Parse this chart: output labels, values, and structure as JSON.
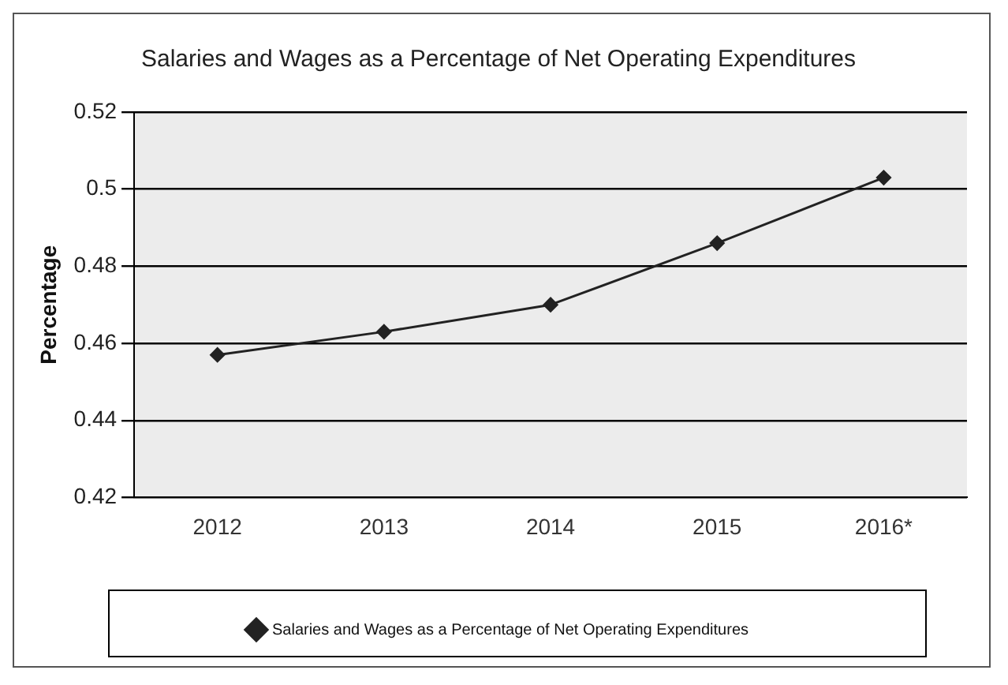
{
  "chart_data": {
    "type": "line",
    "title": "Salaries and Wages as a Percentage of Net Operating Expenditures",
    "ylabel": "Percentage",
    "categories": [
      "2012",
      "2013",
      "2014",
      "2015",
      "2016*"
    ],
    "series": [
      {
        "name": "Salaries and Wages as a Percentage of Net Operating Expenditures",
        "color": "#222222",
        "values": [
          0.457,
          0.463,
          0.47,
          0.486,
          0.503
        ]
      }
    ],
    "ylim": [
      0.42,
      0.52
    ],
    "yticks": [
      0.42,
      0.44,
      0.46,
      0.48,
      0.5,
      0.52
    ],
    "grid": "y",
    "legend": "bottom",
    "marker": "diamond",
    "line_style": "solid"
  }
}
